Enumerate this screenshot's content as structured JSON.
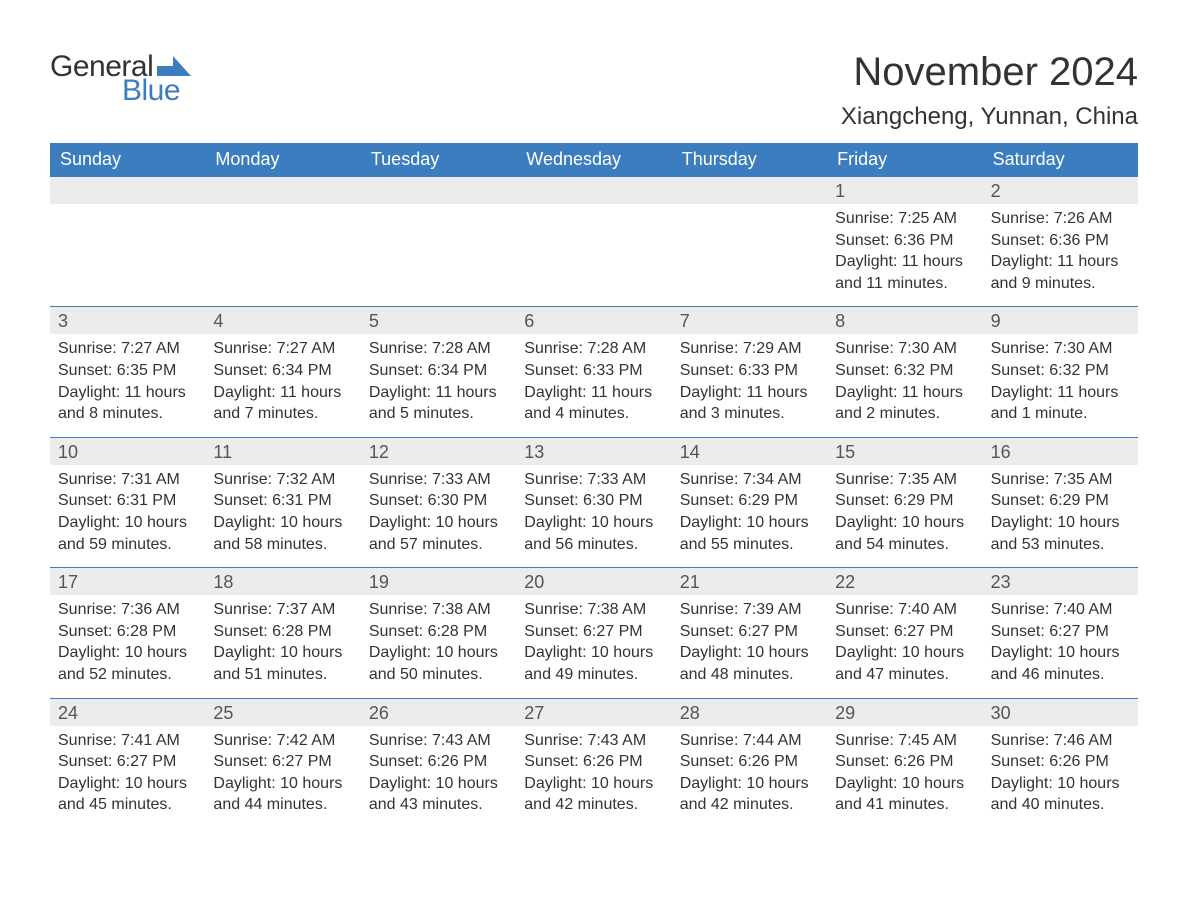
{
  "logo": {
    "word1": "General",
    "word2": "Blue",
    "flag_color": "#3b7dbf"
  },
  "header": {
    "month_title": "November 2024",
    "location": "Xiangcheng, Yunnan, China"
  },
  "theme": {
    "header_bg": "#3b7dbf",
    "header_text": "#ffffff",
    "daynum_bg": "#ececec",
    "border_color": "#3b7dbf",
    "text_color": "#333333",
    "body_bg": "#ffffff"
  },
  "labels": {
    "sunrise": "Sunrise:",
    "sunset": "Sunset:",
    "daylight": "Daylight:"
  },
  "day_headers": [
    "Sunday",
    "Monday",
    "Tuesday",
    "Wednesday",
    "Thursday",
    "Friday",
    "Saturday"
  ],
  "weeks": [
    [
      {
        "empty": true
      },
      {
        "empty": true
      },
      {
        "empty": true
      },
      {
        "empty": true
      },
      {
        "empty": true
      },
      {
        "day": "1",
        "sunrise": "7:25 AM",
        "sunset": "6:36 PM",
        "daylight": "11 hours and 11 minutes."
      },
      {
        "day": "2",
        "sunrise": "7:26 AM",
        "sunset": "6:36 PM",
        "daylight": "11 hours and 9 minutes."
      }
    ],
    [
      {
        "day": "3",
        "sunrise": "7:27 AM",
        "sunset": "6:35 PM",
        "daylight": "11 hours and 8 minutes."
      },
      {
        "day": "4",
        "sunrise": "7:27 AM",
        "sunset": "6:34 PM",
        "daylight": "11 hours and 7 minutes."
      },
      {
        "day": "5",
        "sunrise": "7:28 AM",
        "sunset": "6:34 PM",
        "daylight": "11 hours and 5 minutes."
      },
      {
        "day": "6",
        "sunrise": "7:28 AM",
        "sunset": "6:33 PM",
        "daylight": "11 hours and 4 minutes."
      },
      {
        "day": "7",
        "sunrise": "7:29 AM",
        "sunset": "6:33 PM",
        "daylight": "11 hours and 3 minutes."
      },
      {
        "day": "8",
        "sunrise": "7:30 AM",
        "sunset": "6:32 PM",
        "daylight": "11 hours and 2 minutes."
      },
      {
        "day": "9",
        "sunrise": "7:30 AM",
        "sunset": "6:32 PM",
        "daylight": "11 hours and 1 minute."
      }
    ],
    [
      {
        "day": "10",
        "sunrise": "7:31 AM",
        "sunset": "6:31 PM",
        "daylight": "10 hours and 59 minutes."
      },
      {
        "day": "11",
        "sunrise": "7:32 AM",
        "sunset": "6:31 PM",
        "daylight": "10 hours and 58 minutes."
      },
      {
        "day": "12",
        "sunrise": "7:33 AM",
        "sunset": "6:30 PM",
        "daylight": "10 hours and 57 minutes."
      },
      {
        "day": "13",
        "sunrise": "7:33 AM",
        "sunset": "6:30 PM",
        "daylight": "10 hours and 56 minutes."
      },
      {
        "day": "14",
        "sunrise": "7:34 AM",
        "sunset": "6:29 PM",
        "daylight": "10 hours and 55 minutes."
      },
      {
        "day": "15",
        "sunrise": "7:35 AM",
        "sunset": "6:29 PM",
        "daylight": "10 hours and 54 minutes."
      },
      {
        "day": "16",
        "sunrise": "7:35 AM",
        "sunset": "6:29 PM",
        "daylight": "10 hours and 53 minutes."
      }
    ],
    [
      {
        "day": "17",
        "sunrise": "7:36 AM",
        "sunset": "6:28 PM",
        "daylight": "10 hours and 52 minutes."
      },
      {
        "day": "18",
        "sunrise": "7:37 AM",
        "sunset": "6:28 PM",
        "daylight": "10 hours and 51 minutes."
      },
      {
        "day": "19",
        "sunrise": "7:38 AM",
        "sunset": "6:28 PM",
        "daylight": "10 hours and 50 minutes."
      },
      {
        "day": "20",
        "sunrise": "7:38 AM",
        "sunset": "6:27 PM",
        "daylight": "10 hours and 49 minutes."
      },
      {
        "day": "21",
        "sunrise": "7:39 AM",
        "sunset": "6:27 PM",
        "daylight": "10 hours and 48 minutes."
      },
      {
        "day": "22",
        "sunrise": "7:40 AM",
        "sunset": "6:27 PM",
        "daylight": "10 hours and 47 minutes."
      },
      {
        "day": "23",
        "sunrise": "7:40 AM",
        "sunset": "6:27 PM",
        "daylight": "10 hours and 46 minutes."
      }
    ],
    [
      {
        "day": "24",
        "sunrise": "7:41 AM",
        "sunset": "6:27 PM",
        "daylight": "10 hours and 45 minutes."
      },
      {
        "day": "25",
        "sunrise": "7:42 AM",
        "sunset": "6:27 PM",
        "daylight": "10 hours and 44 minutes."
      },
      {
        "day": "26",
        "sunrise": "7:43 AM",
        "sunset": "6:26 PM",
        "daylight": "10 hours and 43 minutes."
      },
      {
        "day": "27",
        "sunrise": "7:43 AM",
        "sunset": "6:26 PM",
        "daylight": "10 hours and 42 minutes."
      },
      {
        "day": "28",
        "sunrise": "7:44 AM",
        "sunset": "6:26 PM",
        "daylight": "10 hours and 42 minutes."
      },
      {
        "day": "29",
        "sunrise": "7:45 AM",
        "sunset": "6:26 PM",
        "daylight": "10 hours and 41 minutes."
      },
      {
        "day": "30",
        "sunrise": "7:46 AM",
        "sunset": "6:26 PM",
        "daylight": "10 hours and 40 minutes."
      }
    ]
  ]
}
